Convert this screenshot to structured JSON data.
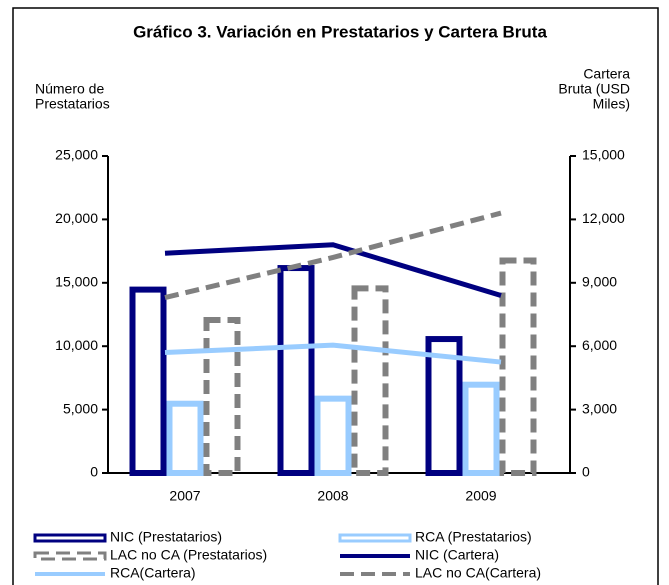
{
  "chart_data": {
    "type": "bar",
    "title": "Gráfico 3. Variación en Prestatarios y Cartera Bruta",
    "y_label": [
      "Número de",
      "Prestatarios"
    ],
    "y2_label": [
      "Cartera",
      "Bruta (USD",
      "Miles)"
    ],
    "categories": [
      "2007",
      "2008",
      "2009"
    ],
    "ylim": [
      0,
      25000
    ],
    "yticks": [
      0,
      {
        "value": 5000,
        "label": "5,000"
      },
      {
        "value": 10000,
        "label": "10,000"
      },
      {
        "value": 15000,
        "label": "15,000"
      },
      {
        "value": 20000,
        "label": "20,000"
      },
      {
        "value": 25000,
        "label": "25,000"
      }
    ],
    "y2lim": [
      0,
      15000
    ],
    "y2ticks": [
      0,
      {
        "value": 3000,
        "label": "3,000"
      },
      {
        "value": 6000,
        "label": "6,000"
      },
      {
        "value": 9000,
        "label": "9,000"
      },
      {
        "value": 12000,
        "label": "12,000"
      },
      {
        "value": 15000,
        "label": "15,000"
      }
    ],
    "series": [
      {
        "name": "NIC (Prestatarios)",
        "type": "bar",
        "color": "#000080",
        "dashed": false,
        "values": [
          14700,
          16400,
          10800
        ]
      },
      {
        "name": "RCA (Prestatarios)",
        "type": "bar",
        "color": "#99ccff",
        "dashed": false,
        "values": [
          5700,
          6100,
          7200
        ]
      },
      {
        "name": "LAC no CA (Prestatarios)",
        "type": "bar",
        "color": "#808080",
        "dashed": true,
        "values": [
          12300,
          14800,
          17000
        ]
      },
      {
        "name": "NIC (Cartera)",
        "type": "line",
        "axis": "y2",
        "color": "#000080",
        "dashed": false,
        "values": [
          10400,
          10800,
          8400
        ]
      },
      {
        "name": "RCA(Cartera)",
        "type": "line",
        "axis": "y2",
        "color": "#99ccff",
        "dashed": false,
        "values": [
          5700,
          6050,
          5250
        ]
      },
      {
        "name": "LAC no CA(Cartera)",
        "type": "line",
        "axis": "y2",
        "color": "#808080",
        "dashed": true,
        "values": [
          8300,
          10200,
          12300
        ]
      }
    ]
  }
}
